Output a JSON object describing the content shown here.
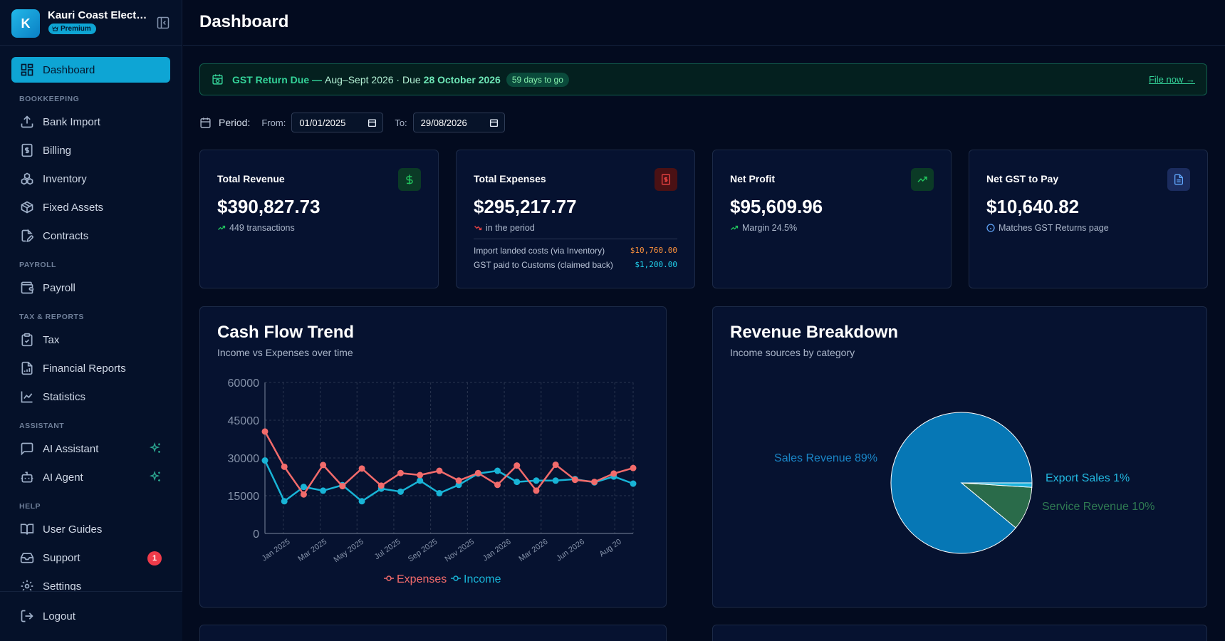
{
  "sidebar": {
    "brand_initial": "K",
    "brand_name": "Kauri Coast Electrical",
    "brand_badge": "Premium",
    "active_color": "#0ea5d4",
    "items": {
      "dashboard": {
        "label": "Dashboard",
        "icon": "grid-icon"
      },
      "bank_import": {
        "label": "Bank Import",
        "icon": "upload-icon"
      },
      "billing": {
        "label": "Billing",
        "icon": "dollar-document-icon"
      },
      "inventory": {
        "label": "Inventory",
        "icon": "boxes-icon"
      },
      "fixed_assets": {
        "label": "Fixed Assets",
        "icon": "package-icon"
      },
      "contracts": {
        "label": "Contracts",
        "icon": "document-edit-icon"
      },
      "payroll": {
        "label": "Payroll",
        "icon": "wallet-icon"
      },
      "tax": {
        "label": "Tax",
        "icon": "clipboard-check-icon"
      },
      "financial_reports": {
        "label": "Financial Reports",
        "icon": "report-chart-icon"
      },
      "statistics": {
        "label": "Statistics",
        "icon": "line-chart-icon"
      },
      "ai_assistant": {
        "label": "AI Assistant",
        "icon": "chat-icon"
      },
      "ai_agent": {
        "label": "AI Agent",
        "icon": "bot-icon"
      },
      "user_guides": {
        "label": "User Guides",
        "icon": "book-icon"
      },
      "support": {
        "label": "Support",
        "icon": "inbox-icon",
        "badge": "1"
      },
      "settings": {
        "label": "Settings",
        "icon": "gear-icon"
      }
    },
    "sections": {
      "bookkeeping": "BOOKKEEPING",
      "payroll": "PAYROLL",
      "tax_reports": "TAX & REPORTS",
      "assistant": "ASSISTANT",
      "help": "HELP"
    },
    "logout_label": "Logout"
  },
  "header": {
    "title": "Dashboard"
  },
  "gst_banner": {
    "title": "GST Return Due —",
    "period": "Aug–Sept 2026 · Due",
    "due_date": "28 October 2026",
    "days_left": "59 days to go",
    "action": "File now →"
  },
  "period": {
    "label": "Period:",
    "from_label": "From:",
    "from_value": "01/01/2025",
    "to_label": "To:",
    "to_value": "29/08/2026"
  },
  "kpis": {
    "revenue": {
      "title": "Total Revenue",
      "value": "$390,827.73",
      "sub": "449 transactions",
      "icon": "dollar-icon",
      "accent": "#22c55e"
    },
    "expenses": {
      "title": "Total Expenses",
      "value": "$295,217.77",
      "sub": "in the period",
      "icon": "receipt-icon",
      "accent": "#ef4444",
      "breakdown": [
        {
          "label": "Import landed costs (via Inventory)",
          "value": "$10,760.00",
          "color": "#fb923c"
        },
        {
          "label": "GST paid to Customs (claimed back)",
          "value": "$1,200.00",
          "color": "#22d3ee"
        }
      ]
    },
    "profit": {
      "title": "Net Profit",
      "value": "$95,609.96",
      "sub": "Margin 24.5%",
      "icon": "trending-up-icon",
      "accent": "#22c55e"
    },
    "gst": {
      "title": "Net GST to Pay",
      "value": "$10,640.82",
      "sub": "Matches GST Returns page",
      "icon": "file-text-icon",
      "accent": "#60a5fa"
    }
  },
  "cashflow_panel": {
    "title": "Cash Flow Trend",
    "subtitle": "Income vs Expenses over time"
  },
  "revenue_panel": {
    "title": "Revenue Breakdown",
    "subtitle": "Income sources by category"
  },
  "chart_data": [
    {
      "type": "line",
      "x_tick_labels": [
        "Jan 2025",
        "Mar 2025",
        "May 2025",
        "Jul 2025",
        "Sep 2025",
        "Nov 2025",
        "Jan 2026",
        "Mar 2026",
        "Jun 2026",
        "Aug 20"
      ],
      "ylim": [
        0,
        60000
      ],
      "yticks": [
        0,
        15000,
        30000,
        45000,
        60000
      ],
      "grid": true,
      "legend": "bottom",
      "series": [
        {
          "name": "Expenses",
          "color": "#f26b6b",
          "values": [
            40500,
            26500,
            15500,
            27200,
            18800,
            25800,
            19000,
            24000,
            23200,
            24900,
            21000,
            24000,
            19300,
            27000,
            17000,
            27300,
            21300,
            20500,
            23800,
            26000
          ]
        },
        {
          "name": "Income",
          "color": "#18b4d6",
          "values": [
            29000,
            12800,
            18500,
            17000,
            19200,
            12800,
            17800,
            16600,
            21000,
            16000,
            19300,
            23800,
            24900,
            20500,
            21000,
            21000,
            21600,
            20300,
            22600,
            19800
          ]
        }
      ]
    },
    {
      "type": "pie",
      "slices": [
        {
          "label": "Sales Revenue",
          "percent": 89,
          "color": "#0677b5"
        },
        {
          "label": "Service Revenue",
          "percent": 10,
          "color": "#2a6b4a"
        },
        {
          "label": "Export Sales",
          "percent": 1,
          "color": "#19b2dc"
        }
      ]
    }
  ]
}
